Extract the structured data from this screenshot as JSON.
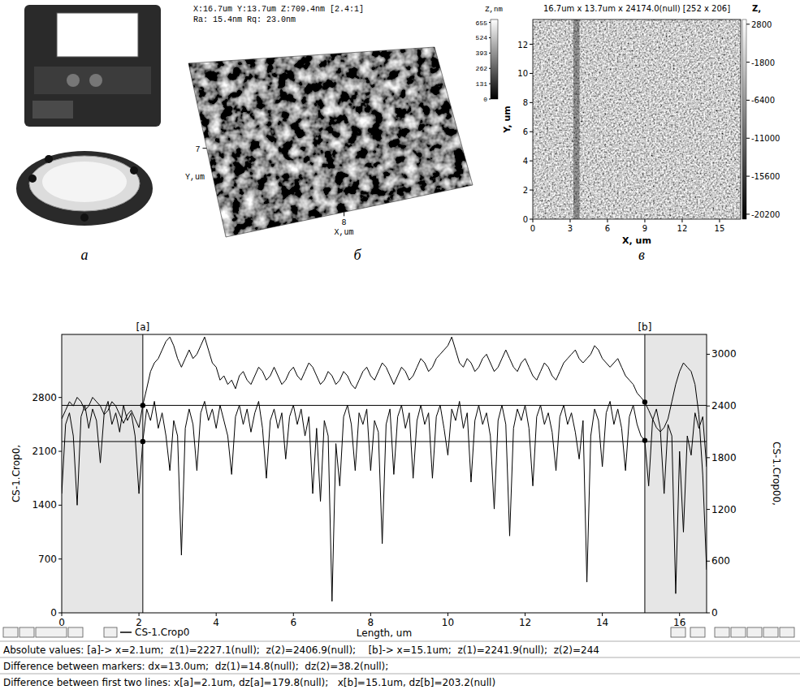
{
  "figure": {
    "panel_letters": [
      "а",
      "б",
      "в"
    ],
    "surface_3d": {
      "header": [
        "X:16.7um Y:13.7um Z:709.4nm [2.4:1]",
        "Ra: 15.4nm Rq: 23.0nm"
      ],
      "xlim": [
        0,
        16.7
      ],
      "ylim": [
        0,
        13.7
      ],
      "xticks": [
        8
      ],
      "yticks": [
        7
      ],
      "x_label": "X,um",
      "y_label": "Y,um",
      "colorbar": {
        "title": "Z,nm",
        "range": [
          0,
          680
        ],
        "ticks": [
          0,
          131,
          262,
          393,
          524,
          655
        ]
      }
    },
    "map_2d": {
      "title": "16.7um x 13.7um x 24174.0(null) [252 x 206]",
      "xlim": [
        0,
        16.7
      ],
      "ylim": [
        0,
        13.7
      ],
      "xticks": [
        0,
        3,
        6,
        9,
        12,
        15
      ],
      "yticks": [
        0,
        2,
        4,
        6,
        8,
        10,
        12
      ],
      "x_label": "X, um",
      "y_label": "Y, um",
      "colorbar": {
        "title": "Z,",
        "range": [
          -20800,
          3374
        ],
        "ticks": [
          2800,
          -1800,
          -6400,
          -11000,
          -15600,
          -20200
        ]
      }
    },
    "status_lines": [
      "Absolute values: [a]-> x=2.1um;  z(1)=2227.1(null);  z(2)=2406.9(null);    [b]-> x=15.1um;  z(1)=2241.9(null);  z(2)=244",
      "Difference between markers: dx=13.0um;  dz(1)=14.8(null);  dz(2)=38.2(null);",
      "Difference between first two lines: x[a]=2.1um, dz[a]=179.8(null);   x[b]=15.1um, dz[b]=203.2(null)"
    ]
  },
  "chart_data": {
    "type": "line",
    "x_label": "Length, um",
    "y_label": "CS-1.Crop0,",
    "y2_label": "CS-1.Crop00,",
    "xlim": [
      0,
      16.7
    ],
    "xticks": [
      0,
      2,
      4,
      6,
      8,
      10,
      12,
      14,
      16
    ],
    "ylim": [
      0,
      3620
    ],
    "yticks": [
      0,
      700,
      1400,
      2100,
      2800
    ],
    "y2lim": [
      0,
      3230
    ],
    "y2ticks": [
      0,
      600,
      1200,
      1800,
      2400,
      3000
    ],
    "grid": false,
    "legend": "lower left",
    "x": [
      0,
      0.1,
      0.2,
      0.3,
      0.4,
      0.5,
      0.6,
      0.7,
      0.8,
      0.9,
      1,
      1.1,
      1.2,
      1.3,
      1.4,
      1.5,
      1.6,
      1.7,
      1.8,
      1.9,
      2,
      2.1,
      2.2,
      2.3,
      2.4,
      2.5,
      2.6,
      2.7,
      2.8,
      2.9,
      3,
      3.1,
      3.2,
      3.3,
      3.4,
      3.5,
      3.6,
      3.7,
      3.8,
      3.9,
      4,
      4.1,
      4.2,
      4.3,
      4.4,
      4.5,
      4.6,
      4.7,
      4.8,
      4.9,
      5,
      5.1,
      5.2,
      5.3,
      5.4,
      5.5,
      5.6,
      5.7,
      5.8,
      5.9,
      6,
      6.1,
      6.2,
      6.3,
      6.4,
      6.5,
      6.6,
      6.7,
      6.8,
      6.9,
      7,
      7.1,
      7.2,
      7.3,
      7.4,
      7.5,
      7.6,
      7.7,
      7.8,
      7.9,
      8,
      8.1,
      8.2,
      8.3,
      8.4,
      8.5,
      8.6,
      8.7,
      8.8,
      8.9,
      9,
      9.1,
      9.2,
      9.3,
      9.4,
      9.5,
      9.6,
      9.7,
      9.8,
      9.9,
      10,
      10.1,
      10.2,
      10.3,
      10.4,
      10.5,
      10.6,
      10.7,
      10.8,
      10.9,
      11,
      11.1,
      11.2,
      11.3,
      11.4,
      11.5,
      11.6,
      11.7,
      11.8,
      11.9,
      12,
      12.1,
      12.2,
      12.3,
      12.4,
      12.5,
      12.6,
      12.7,
      12.8,
      12.9,
      13,
      13.1,
      13.2,
      13.3,
      13.4,
      13.5,
      13.6,
      13.7,
      13.8,
      13.9,
      14,
      14.1,
      14.2,
      14.3,
      14.4,
      14.5,
      14.6,
      14.7,
      14.8,
      14.9,
      15,
      15.1,
      15.2,
      15.3,
      15.4,
      15.5,
      15.6,
      15.7,
      15.8,
      15.9,
      16,
      16.1,
      16.2,
      16.3,
      16.4,
      16.5,
      16.6,
      16.7
    ],
    "series": [
      {
        "name": "CS-1.Crop0",
        "color": "#000000",
        "values": [
          1550,
          2450,
          2600,
          2300,
          1400,
          2550,
          2700,
          2400,
          2650,
          2500,
          1950,
          2600,
          2750,
          2450,
          2600,
          2350,
          2700,
          2500,
          2600,
          2300,
          1550,
          2230,
          2650,
          2500,
          2750,
          2400,
          2600,
          2300,
          1850,
          2500,
          2300,
          750,
          2400,
          2650,
          2450,
          1850,
          2600,
          2750,
          2500,
          2650,
          2400,
          2700,
          2500,
          2300,
          1800,
          2550,
          2700,
          2450,
          2650,
          2350,
          2600,
          2750,
          2400,
          1750,
          2500,
          2650,
          2400,
          2600,
          2000,
          2550,
          2700,
          2450,
          2650,
          2300,
          2550,
          1550,
          2400,
          1450,
          2500,
          2300,
          150,
          2200,
          1650,
          2550,
          2700,
          2450,
          1850,
          2600,
          2450,
          2650,
          1850,
          2500,
          2350,
          900,
          2450,
          2650,
          1800,
          2550,
          2700,
          2400,
          2600,
          1750,
          2500,
          2700,
          2450,
          2600,
          1750,
          2550,
          2700,
          2400,
          2050,
          2650,
          2500,
          2750,
          2400,
          2600,
          1700,
          2500,
          2700,
          2450,
          2600,
          2300,
          1350,
          2500,
          2700,
          2450,
          1000,
          2400,
          2650,
          2500,
          2700,
          2400,
          1650,
          2550,
          2700,
          2450,
          2600,
          2350,
          1850,
          2550,
          2700,
          2450,
          2600,
          2350,
          2000,
          2500,
          400,
          2300,
          2650,
          2500,
          1900,
          2600,
          2750,
          2450,
          2650,
          2400,
          1850,
          2550,
          2700,
          2450,
          2300,
          2240,
          1650,
          2500,
          2650,
          2400,
          1550,
          2450,
          2300,
          250,
          2100,
          1050,
          2300,
          2050,
          2600,
          2400,
          2550,
          1900
        ]
      },
      {
        "color": "#000000",
        "axis": "y2",
        "values": [
          2250,
          2350,
          2450,
          2400,
          2500,
          2450,
          2350,
          2400,
          2500,
          2450,
          2400,
          2300,
          2350,
          2450,
          2400,
          2300,
          2200,
          2300,
          2350,
          2250,
          2150,
          2410,
          2600,
          2800,
          2900,
          2950,
          3050,
          3150,
          3200,
          3100,
          2950,
          2850,
          2950,
          3050,
          2950,
          3000,
          3100,
          3200,
          3050,
          2900,
          2850,
          2700,
          2750,
          2650,
          2700,
          2600,
          2750,
          2800,
          2700,
          2650,
          2750,
          2850,
          2800,
          2700,
          2750,
          2850,
          2750,
          2650,
          2700,
          2800,
          2850,
          2750,
          2700,
          2800,
          2900,
          2850,
          2750,
          2650,
          2700,
          2800,
          2750,
          2650,
          2700,
          2800,
          2750,
          2650,
          2600,
          2700,
          2800,
          2850,
          2750,
          2700,
          2800,
          2900,
          2850,
          2750,
          2650,
          2750,
          2850,
          2800,
          2700,
          2750,
          2850,
          2950,
          2900,
          2800,
          2850,
          2950,
          3000,
          3050,
          3100,
          3200,
          3050,
          2900,
          2850,
          2950,
          2900,
          2800,
          2850,
          2950,
          3000,
          2900,
          2800,
          2850,
          2950,
          3050,
          2950,
          2850,
          2800,
          2900,
          2950,
          2850,
          2750,
          2700,
          2800,
          2900,
          2850,
          2750,
          2700,
          2800,
          2900,
          2950,
          3000,
          3050,
          2950,
          2900,
          2950,
          3000,
          3100,
          3050,
          2950,
          2900,
          2850,
          2900,
          2950,
          2850,
          2750,
          2700,
          2650,
          2550,
          2500,
          2445,
          2350,
          2250,
          2150,
          2100,
          2150,
          2250,
          2450,
          2650,
          2800,
          2900,
          2850,
          2800,
          2650,
          2300,
          1600,
          500
        ]
      }
    ],
    "annotations": [
      {
        "label": "[a]",
        "x": 2.1,
        "z": [
          2227.1,
          2406.9
        ]
      },
      {
        "label": "[b]",
        "x": 15.1,
        "z": [
          2241.9,
          2445.1
        ]
      }
    ]
  }
}
